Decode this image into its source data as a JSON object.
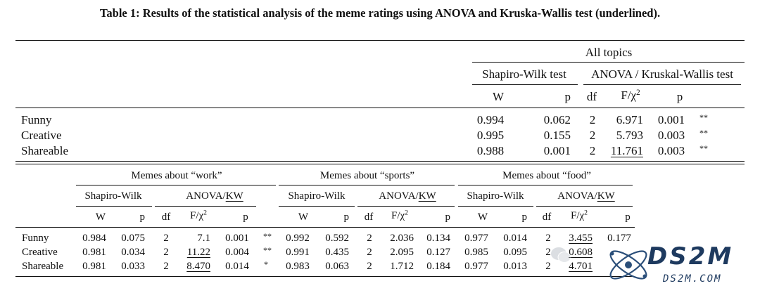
{
  "caption": "Table 1: Results of the statistical analysis of the meme ratings using ANOVA and Kruska-Wallis test (underlined).",
  "top_table": {
    "group_header": "All topics",
    "sw_header": "Shapiro-Wilk test",
    "anova_header": "ANOVA / Kruskal-Wallis test",
    "col_W": "W",
    "col_p": "p",
    "col_df": "df",
    "col_F": "F/χ",
    "col_F_sup": "2",
    "col_p2": "p",
    "rows": [
      {
        "label": "Funny",
        "W": "0.994",
        "p": "0.062",
        "df": "2",
        "F": "6.971",
        "p2": "0.001",
        "sig": "**"
      },
      {
        "label": "Creative",
        "W": "0.995",
        "p": "0.155",
        "df": "2",
        "F": "5.793",
        "p2": "0.003",
        "sig": "**"
      },
      {
        "label": "Shareable",
        "W": "0.988",
        "p": "0.001",
        "df": "2",
        "F": "11.761",
        "p2": "0.003",
        "sig": "**"
      }
    ]
  },
  "bottom_table": {
    "groups": [
      "Memes about “work”",
      "Memes about “sports”",
      "Memes about “food”"
    ],
    "sw_header": "Shapiro-Wilk",
    "anova_prefix": "ANOVA/",
    "anova_kw": "KW",
    "col_W": "W",
    "col_p": "p",
    "col_df": "df",
    "col_F": "F/χ",
    "col_F_sup": "2",
    "rows": [
      {
        "label": "Funny",
        "work": {
          "W": "0.984",
          "p": "0.075",
          "df": "2",
          "F": "7.1",
          "p2": "0.001",
          "sig": "**"
        },
        "sports": {
          "W": "0.992",
          "p": "0.592",
          "df": "2",
          "F": "2.036",
          "p2": "0.134"
        },
        "food": {
          "W": "0.977",
          "p": "0.014",
          "df": "2",
          "F": "3.455",
          "p2": "0.177"
        }
      },
      {
        "label": "Creative",
        "work": {
          "W": "0.981",
          "p": "0.034",
          "df": "2",
          "F": "11.22",
          "p2": "0.004",
          "sig": "**"
        },
        "sports": {
          "W": "0.991",
          "p": "0.435",
          "df": "2",
          "F": "2.095",
          "p2": "0.127"
        },
        "food": {
          "W": "0.985",
          "p": "0.095",
          "df": "2",
          "F": "0.608"
        }
      },
      {
        "label": "Shareable",
        "work": {
          "W": "0.981",
          "p": "0.033",
          "df": "2",
          "F": "8.470",
          "p2": "0.014",
          "sig": "*"
        },
        "sports": {
          "W": "0.983",
          "p": "0.063",
          "df": "2",
          "F": "1.712",
          "p2": "0.184"
        },
        "food": {
          "W": "0.977",
          "p": "0.013",
          "df": "2",
          "F": "4.701"
        }
      }
    ]
  },
  "watermark": {
    "brand": "DS2M",
    "url": "DS2M.COM",
    "color": "#1e3a5f"
  }
}
